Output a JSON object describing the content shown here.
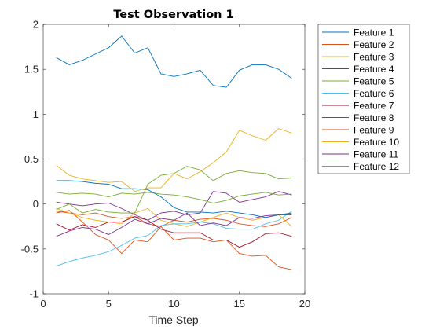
{
  "chart_data": {
    "type": "line",
    "title": "Test Observation 1",
    "xlabel": "Time Step",
    "ylabel": "",
    "xlim": [
      0,
      20
    ],
    "ylim": [
      -1,
      2
    ],
    "xticks": [
      0,
      5,
      10,
      15,
      20
    ],
    "yticks": [
      -1,
      -0.5,
      0,
      0.5,
      1,
      1.5,
      2
    ],
    "xtick_labels": [
      "0",
      "5",
      "10",
      "15",
      "20"
    ],
    "ytick_labels": [
      "-1",
      "-0.5",
      "0",
      "0.5",
      "1",
      "1.5",
      "2"
    ],
    "grid": false,
    "legend_position": "outside-top-right",
    "x": [
      1,
      2,
      3,
      4,
      5,
      6,
      7,
      8,
      9,
      10,
      11,
      12,
      13,
      14,
      15,
      16,
      17,
      18,
      19
    ],
    "series": [
      {
        "name": "Feature 1",
        "color": "#0072BD",
        "values": [
          1.63,
          1.55,
          1.6,
          1.67,
          1.74,
          1.87,
          1.68,
          1.74,
          1.45,
          1.42,
          1.45,
          1.49,
          1.32,
          1.3,
          1.49,
          1.55,
          1.55,
          1.5,
          1.4
        ]
      },
      {
        "name": "Feature 2",
        "color": "#D95319",
        "values": [
          -0.08,
          -0.1,
          -0.12,
          -0.1,
          -0.14,
          -0.16,
          -0.14,
          -0.22,
          -0.25,
          -0.18,
          -0.2,
          -0.17,
          -0.16,
          -0.18,
          -0.22,
          -0.24,
          -0.25,
          -0.22,
          -0.15
        ]
      },
      {
        "name": "Feature 3",
        "color": "#EDB120",
        "values": [
          -0.05,
          -0.1,
          -0.15,
          -0.18,
          -0.2,
          -0.22,
          -0.1,
          -0.05,
          -0.18,
          -0.22,
          -0.25,
          -0.2,
          -0.15,
          -0.1,
          -0.15,
          -0.18,
          -0.15,
          -0.12,
          -0.25
        ]
      },
      {
        "name": "Feature 4",
        "color": "#7E2F8E",
        "values": [
          0.02,
          0.0,
          -0.02,
          0.0,
          0.01,
          -0.05,
          -0.12,
          -0.18,
          -0.1,
          -0.08,
          -0.12,
          -0.1,
          0.14,
          0.12,
          0.02,
          0.05,
          0.08,
          0.14,
          0.1
        ]
      },
      {
        "name": "Feature 5",
        "color": "#77AC30",
        "values": [
          0.13,
          0.11,
          0.12,
          0.11,
          0.08,
          0.12,
          0.11,
          0.13,
          0.11,
          0.1,
          0.08,
          0.05,
          0.01,
          0.04,
          0.09,
          0.11,
          0.13,
          0.1,
          0.11
        ]
      },
      {
        "name": "Feature 6",
        "color": "#4DBEEE",
        "values": [
          -0.69,
          -0.64,
          -0.6,
          -0.57,
          -0.53,
          -0.46,
          -0.38,
          -0.35,
          -0.24,
          -0.22,
          -0.22,
          -0.2,
          -0.22,
          -0.27,
          -0.28,
          -0.28,
          -0.22,
          -0.18,
          -0.08
        ]
      },
      {
        "name": "Feature 7",
        "color": "#A2142F",
        "values": [
          -0.22,
          -0.29,
          -0.23,
          -0.26,
          -0.2,
          -0.2,
          -0.14,
          -0.18,
          -0.28,
          -0.32,
          -0.32,
          -0.32,
          -0.4,
          -0.4,
          -0.48,
          -0.42,
          -0.33,
          -0.32,
          -0.36
        ]
      },
      {
        "name": "Feature 8",
        "color": "#0072BD",
        "values": [
          0.26,
          0.26,
          0.25,
          0.23,
          0.22,
          0.17,
          0.17,
          0.16,
          0.08,
          -0.04,
          -0.09,
          -0.09,
          -0.1,
          -0.08,
          -0.1,
          -0.12,
          -0.15,
          -0.12,
          -0.1
        ]
      },
      {
        "name": "Feature 9",
        "color": "#D95319",
        "values": [
          -0.1,
          -0.07,
          -0.2,
          -0.34,
          -0.4,
          -0.55,
          -0.4,
          -0.42,
          -0.25,
          -0.4,
          -0.38,
          -0.38,
          -0.42,
          -0.4,
          -0.55,
          -0.58,
          -0.57,
          -0.7,
          -0.73
        ]
      },
      {
        "name": "Feature 10",
        "color": "#EDB120",
        "values": [
          0.43,
          0.32,
          0.28,
          0.26,
          0.24,
          0.25,
          0.14,
          0.18,
          0.18,
          0.34,
          0.28,
          0.36,
          0.46,
          0.58,
          0.82,
          0.76,
          0.71,
          0.84,
          0.79
        ]
      },
      {
        "name": "Feature 11",
        "color": "#7E2F8E",
        "values": [
          -0.36,
          -0.3,
          -0.26,
          -0.28,
          -0.34,
          -0.26,
          -0.17,
          -0.22,
          -0.16,
          -0.18,
          -0.1,
          -0.24,
          -0.21,
          -0.24,
          -0.15,
          -0.16,
          -0.13,
          -0.12,
          -0.12
        ]
      },
      {
        "name": "Feature 12",
        "color": "#77AC30",
        "values": [
          -0.06,
          0.0,
          -0.1,
          -0.06,
          -0.09,
          -0.1,
          -0.1,
          0.22,
          0.32,
          0.34,
          0.42,
          0.38,
          0.26,
          0.34,
          0.37,
          0.35,
          0.34,
          0.28,
          0.29
        ]
      }
    ]
  }
}
